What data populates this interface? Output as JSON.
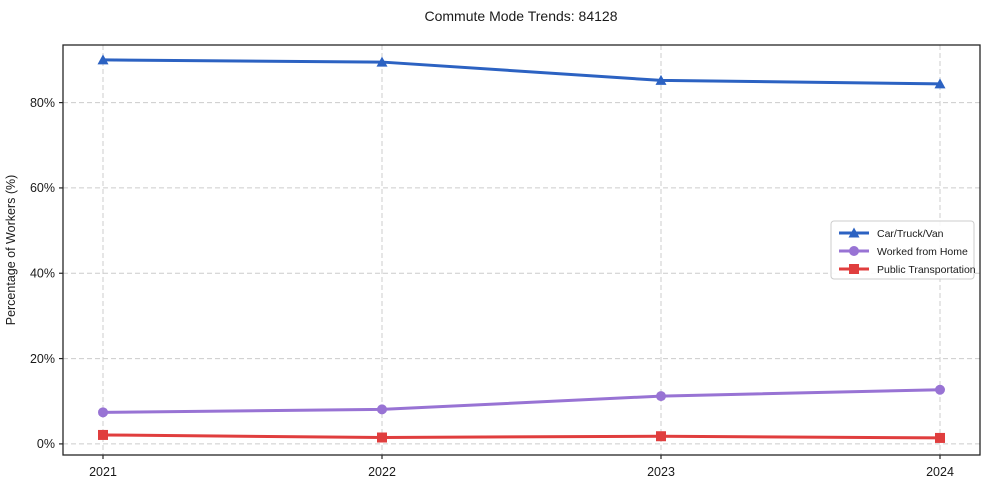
{
  "chart_data": {
    "type": "line",
    "title": "Commute Mode Trends: 84128",
    "xlabel": "",
    "ylabel": "Percentage of Workers (%)",
    "categories": [
      "2021",
      "2022",
      "2023",
      "2024"
    ],
    "series": [
      {
        "name": "Car/Truck/Van",
        "marker": "triangle-up",
        "color": "#2c62c2",
        "values": [
          90.0,
          89.5,
          85.2,
          84.4
        ]
      },
      {
        "name": "Worked from Home",
        "marker": "circle",
        "color": "#9873d4",
        "values": [
          7.4,
          8.1,
          11.2,
          12.7
        ]
      },
      {
        "name": "Public Transportation",
        "marker": "square",
        "color": "#e03e3e",
        "values": [
          2.1,
          1.5,
          1.8,
          1.4
        ]
      }
    ],
    "y_ticks": [
      {
        "label": "0%",
        "value": 0
      },
      {
        "label": "20%",
        "value": 20
      },
      {
        "label": "40%",
        "value": 40
      },
      {
        "label": "60%",
        "value": 60
      },
      {
        "label": "80%",
        "value": 80
      }
    ],
    "ylim": [
      -2.6,
      93.5
    ],
    "grid": true,
    "grid_style": "dashed",
    "grid_color": "#cccccc",
    "spine_color": "#262626",
    "legend_position": "right-middle",
    "background": "#ffffff"
  }
}
